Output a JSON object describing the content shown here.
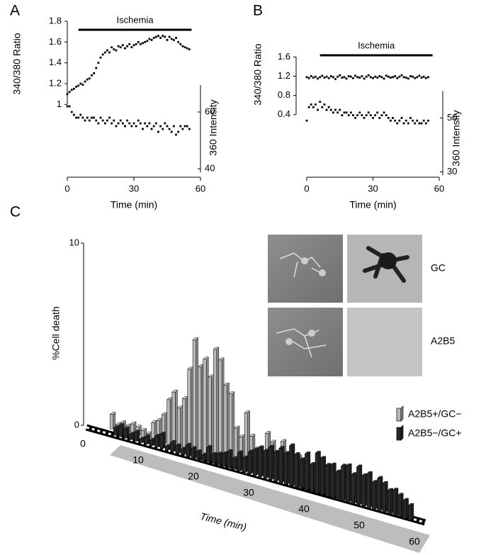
{
  "chart_data": [
    {
      "panel": "A",
      "type": "scatter",
      "xlabel": "Time (min)",
      "ylabel": "340/380 Ratio",
      "y2label": "360 Intensity",
      "x": [
        0,
        1,
        2,
        3,
        4,
        5,
        6,
        7,
        8,
        9,
        10,
        11,
        12,
        13,
        14,
        15,
        16,
        17,
        18,
        19,
        20,
        21,
        22,
        23,
        24,
        25,
        26,
        27,
        28,
        29,
        30,
        31,
        32,
        33,
        34,
        35,
        36,
        37,
        38,
        39,
        40,
        41,
        42,
        43,
        44,
        45,
        46,
        47,
        48,
        49,
        50,
        51,
        52,
        53,
        54,
        55
      ],
      "xlim": [
        0,
        60
      ],
      "xticks": [
        0,
        30,
        60
      ],
      "ylim": [
        0.3,
        1.8
      ],
      "yticks": [
        1,
        1.2,
        1.4,
        1.6,
        1.8
      ],
      "y2lim": [
        37,
        92
      ],
      "y2ticks": [
        40,
        60
      ],
      "annotation": {
        "text": "Ischemia",
        "x": [
          5,
          56
        ]
      },
      "series": [
        {
          "color": "#000000",
          "values": [
            1.1,
            1.12,
            1.14,
            1.15,
            1.17,
            1.18,
            1.2,
            1.19,
            1.22,
            1.24,
            1.25,
            1.28,
            1.3,
            1.35,
            1.4,
            1.45,
            1.48,
            1.5,
            1.52,
            1.5,
            1.55,
            1.53,
            1.52,
            1.56,
            1.55,
            1.57,
            1.54,
            1.56,
            1.58,
            1.55,
            1.57,
            1.58,
            1.6,
            1.58,
            1.59,
            1.6,
            1.61,
            1.63,
            1.62,
            1.64,
            1.65,
            1.66,
            1.64,
            1.66,
            1.65,
            1.62,
            1.65,
            1.63,
            1.62,
            1.64,
            1.6,
            1.58,
            1.56,
            1.55,
            1.54,
            1.53
          ]
        },
        {
          "color": "#000000",
          "axis": "y2",
          "values": [
            62,
            62,
            60,
            59,
            58,
            58,
            59,
            58,
            57,
            58,
            57,
            58,
            58,
            57,
            56,
            58,
            57,
            56,
            57,
            58,
            56,
            57,
            55,
            56,
            57,
            56,
            55,
            57,
            56,
            55,
            56,
            55,
            57,
            56,
            54,
            56,
            55,
            56,
            54,
            55,
            56,
            53,
            55,
            54,
            56,
            55,
            54,
            53,
            55,
            52,
            53,
            55,
            54,
            55,
            55,
            54
          ]
        }
      ]
    },
    {
      "panel": "B",
      "type": "scatter",
      "xlabel": "Time (min)",
      "ylabel": "340/380 Ratio",
      "y2label": "360 Intensity",
      "x": [
        0,
        1,
        2,
        3,
        4,
        5,
        6,
        7,
        8,
        9,
        10,
        11,
        12,
        13,
        14,
        15,
        16,
        17,
        18,
        19,
        20,
        21,
        22,
        23,
        24,
        25,
        26,
        27,
        28,
        29,
        30,
        31,
        32,
        33,
        34,
        35,
        36,
        37,
        38,
        39,
        40,
        41,
        42,
        43,
        44,
        45,
        46,
        47,
        48,
        49,
        50,
        51,
        52,
        53,
        54,
        55
      ],
      "xlim": [
        0,
        60
      ],
      "xticks": [
        0,
        30,
        60
      ],
      "ylim": [
        -0.9,
        1.9
      ],
      "yticks": [
        0.4,
        0.8,
        1.2,
        1.6
      ],
      "y2lim": [
        28,
        78
      ],
      "y2ticks": [
        30,
        50
      ],
      "annotation": {
        "text": "Ischemia",
        "x": [
          6,
          57
        ]
      },
      "series": [
        {
          "color": "#000000",
          "values": [
            1.18,
            1.16,
            1.2,
            1.17,
            1.19,
            1.15,
            1.18,
            1.21,
            1.17,
            1.19,
            1.16,
            1.2,
            1.18,
            1.14,
            1.19,
            1.22,
            1.17,
            1.18,
            1.15,
            1.2,
            1.19,
            1.16,
            1.21,
            1.18,
            1.17,
            1.2,
            1.15,
            1.19,
            1.22,
            1.18,
            1.16,
            1.19,
            1.17,
            1.2,
            1.18,
            1.15,
            1.21,
            1.19,
            1.17,
            1.18,
            1.2,
            1.16,
            1.19,
            1.22,
            1.18,
            1.17,
            1.15,
            1.2,
            1.19,
            1.16,
            1.18,
            1.21,
            1.17,
            1.19,
            1.16,
            1.18
          ]
        },
        {
          "color": "#000000",
          "axis": "y2",
          "values": [
            49,
            54,
            55,
            54,
            55,
            53,
            56,
            54,
            55,
            53,
            54,
            53,
            52,
            53,
            52,
            53,
            51,
            52,
            52,
            51,
            52,
            51,
            50,
            51,
            52,
            51,
            50,
            51,
            52,
            51,
            50,
            51,
            52,
            50,
            51,
            52,
            51,
            50,
            49,
            50,
            49,
            48,
            49,
            50,
            48,
            49,
            48,
            50,
            49,
            48,
            49,
            48,
            48,
            49,
            48,
            49
          ]
        }
      ]
    },
    {
      "panel": "C",
      "type": "bar",
      "xlabel": "Time (min)",
      "ylabel": "%Cell death",
      "x": [
        1,
        2,
        3,
        4,
        5,
        6,
        7,
        8,
        9,
        10,
        11,
        12,
        13,
        14,
        15,
        16,
        17,
        18,
        19,
        20,
        21,
        22,
        23,
        24,
        25,
        26,
        27,
        28,
        29,
        30,
        31,
        32,
        33,
        34,
        35,
        36,
        37,
        38,
        39,
        40,
        41,
        42,
        43,
        44,
        45,
        46,
        47,
        48,
        49,
        50,
        51,
        52,
        53,
        54,
        55,
        56,
        57,
        58
      ],
      "xlim": [
        0,
        60
      ],
      "xticks": [
        0,
        10,
        20,
        30,
        40,
        50,
        60
      ],
      "ylim": [
        0,
        10
      ],
      "yticks": [
        0,
        10
      ],
      "image_labels": [
        "GC",
        "A2B5"
      ],
      "series": [
        {
          "name": "A2B5+/GC−",
          "color": "#b8b8b8",
          "values": [
            0.8,
            0.3,
            0.5,
            0.4,
            0.6,
            0.5,
            0.4,
            0.3,
            1.0,
            1.2,
            1.6,
            2.5,
            3.0,
            2.2,
            2.8,
            4.5,
            6.2,
            4.8,
            5.3,
            4.4,
            6.0,
            5.5,
            4.2,
            3.8,
            2.0,
            1.6,
            3.0,
            1.8,
            1.2,
            1.0,
            2.2,
            1.8,
            0.6,
            2.0,
            0.4,
            0.8,
            1.4,
            0.4,
            0.2,
            0.6,
            1.6,
            0.3,
            0.6,
            0.2,
            0.8,
            0.3,
            0.5,
            0.2,
            0.4,
            0.3,
            0.2,
            0.1,
            0.3,
            0.2,
            0.1,
            0.2,
            0.1,
            0.1
          ]
        },
        {
          "name": "A2B5−/GC+",
          "color": "#2a2a2a",
          "values": [
            0.4,
            0.6,
            0.5,
            0.3,
            0.5,
            0.2,
            0.4,
            0.3,
            0.6,
            0.8,
            0.2,
            0.5,
            0.4,
            0.3,
            0.6,
            0.5,
            0.4,
            0.3,
            0.8,
            0.5,
            0.6,
            0.7,
            0.9,
            0.6,
            1.0,
            0.8,
            1.2,
            1.4,
            1.6,
            1.5,
            1.8,
            1.6,
            1.9,
            1.7,
            2.2,
            1.8,
            1.6,
            2.0,
            1.5,
            2.2,
            2.0,
            1.7,
            1.8,
            1.5,
            1.9,
            2.0,
            1.6,
            2.1,
            1.7,
            1.9,
            1.5,
            1.8,
            1.6,
            1.3,
            1.4,
            1.2,
            1.0,
            0.8
          ]
        }
      ]
    }
  ]
}
